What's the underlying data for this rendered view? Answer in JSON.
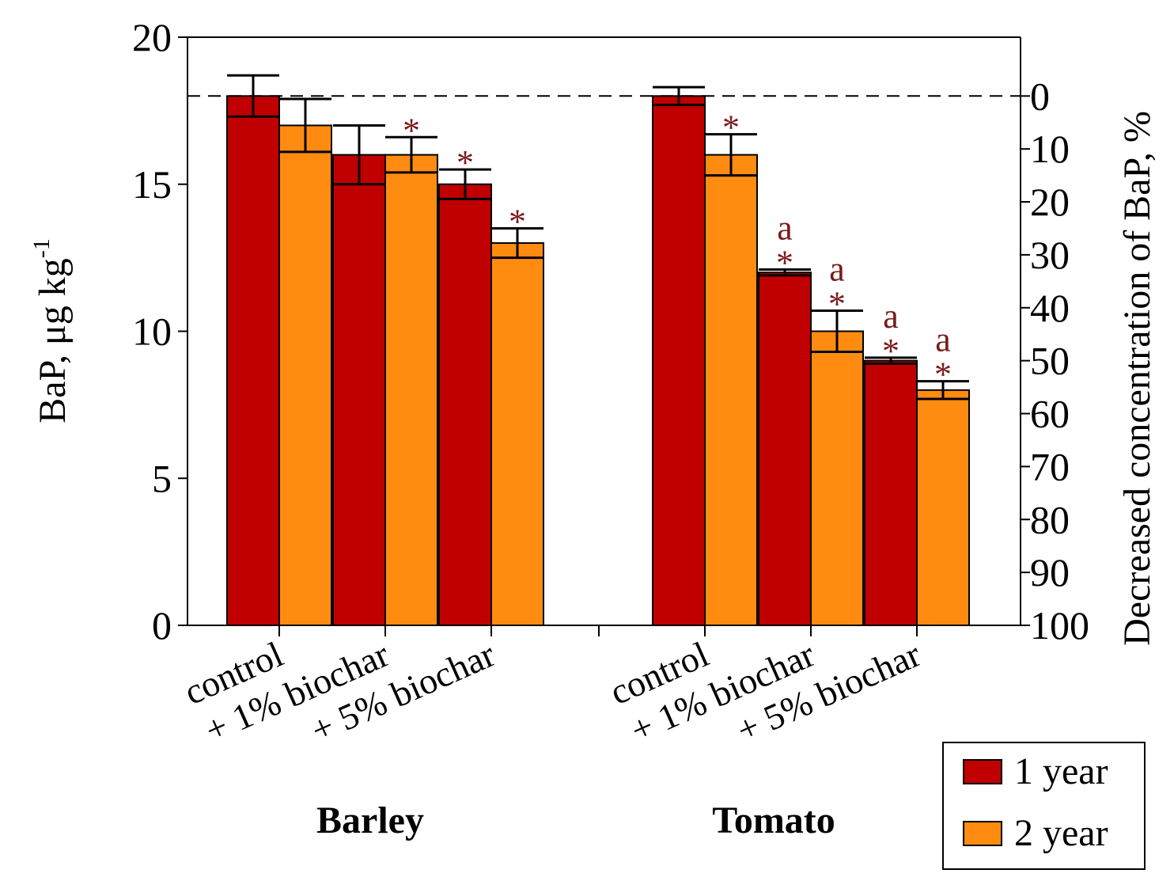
{
  "chart_data": {
    "type": "bar",
    "ylabel": "BaP, μg kg",
    "ylabel_sup": "-1",
    "y2label": "Decreased concentration of BaP, %",
    "ylim": [
      0,
      20
    ],
    "yticks": [
      0,
      5,
      10,
      15,
      20
    ],
    "y2ticks": [
      0,
      10,
      20,
      30,
      40,
      50,
      60,
      70,
      80,
      90,
      100
    ],
    "baseline_value": 18,
    "groups": [
      {
        "name": "Barley",
        "categories": [
          "control",
          "+ 1% biochar",
          "+ 5% biochar"
        ]
      },
      {
        "name": "Tomato",
        "categories": [
          "control",
          "+ 1% biochar",
          "+ 5% biochar"
        ]
      }
    ],
    "series": [
      {
        "name": "1 year",
        "color": "#c00000",
        "values": [
          18.0,
          16.0,
          15.0,
          18.0,
          12.0,
          9.0
        ],
        "errors": [
          0.7,
          1.0,
          0.5,
          0.3,
          0.1,
          0.1
        ],
        "annotations": [
          "",
          "",
          "*",
          "",
          "a*",
          "a*"
        ]
      },
      {
        "name": "2 year",
        "color": "#ff8c10",
        "values": [
          17.0,
          16.0,
          13.0,
          16.0,
          10.0,
          8.0
        ],
        "errors": [
          0.9,
          0.6,
          0.5,
          0.7,
          0.7,
          0.3
        ],
        "annotations": [
          "",
          "*",
          "*",
          "*",
          "a*",
          "a*"
        ]
      }
    ],
    "legend": [
      "1 year",
      "2 year"
    ],
    "legend_position": "bottom-right"
  }
}
